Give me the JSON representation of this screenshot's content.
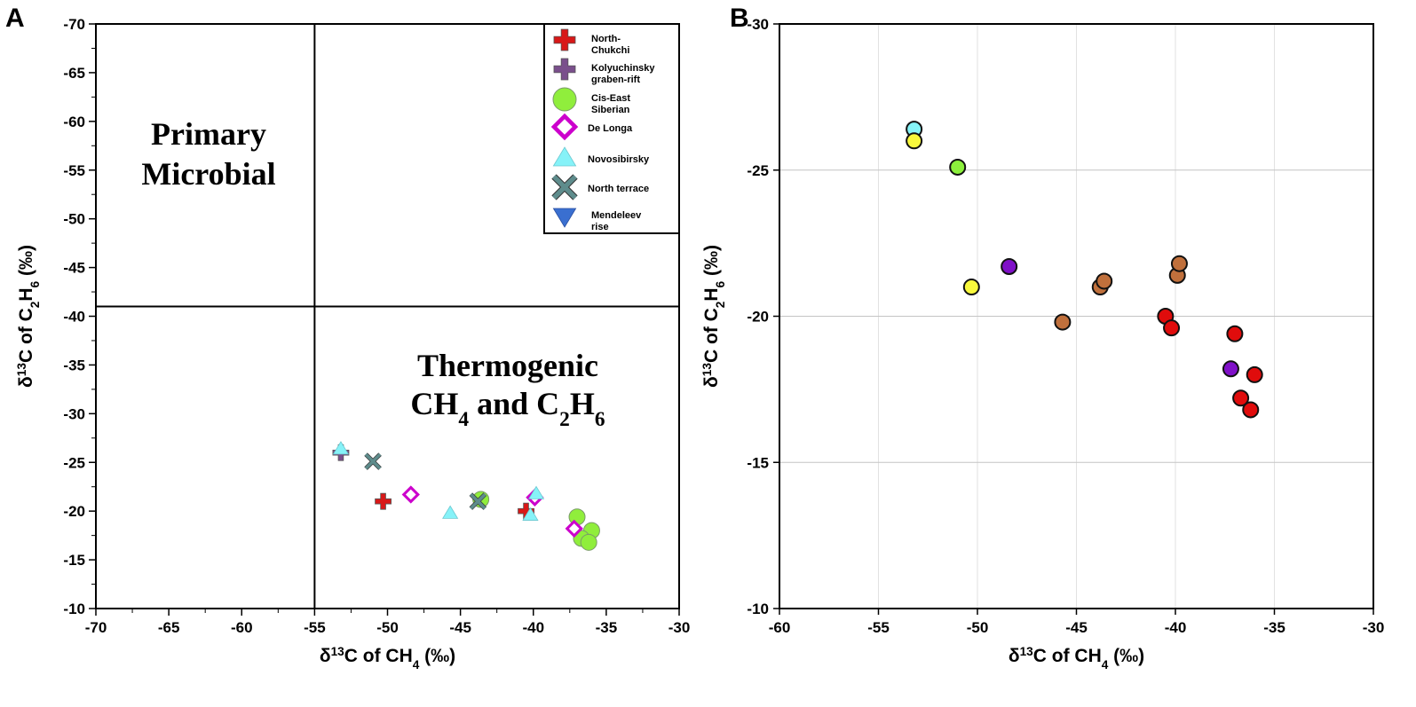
{
  "chart_data": [
    {
      "panel": "A",
      "type": "scatter",
      "xlabel": "δ13C of CH4 (‰)",
      "ylabel": "δ13C of C2H6 (‰)",
      "xlim": [
        -70,
        -30
      ],
      "ylim": [
        -70,
        -10
      ],
      "y_inverted_top": -70,
      "xticks": [
        -70,
        -65,
        -60,
        -55,
        -50,
        -45,
        -40,
        -35,
        -30
      ],
      "yticks": [
        -70,
        -65,
        -60,
        -55,
        -50,
        -45,
        -40,
        -35,
        -30,
        -25,
        -20,
        -15,
        -10
      ],
      "grid": false,
      "legend_placement": "top-right",
      "boundaries": {
        "x": -55,
        "y": -41
      },
      "regions": [
        {
          "lines": [
            "Primary",
            "Microbial"
          ]
        },
        {
          "lines": [
            "Thermogenic",
            "CH4 and C2H6"
          ]
        }
      ],
      "series": [
        {
          "name": "North-Chukchi",
          "legend_lines": [
            "North-",
            "Chukchi"
          ],
          "marker": "plus",
          "color": "#d81818",
          "points": [
            [
              -50.3,
              -21.0
            ],
            [
              -40.5,
              -20.0
            ]
          ]
        },
        {
          "name": "Kolyuchinsky graben-rift",
          "legend_lines": [
            "Kolyuchinsky",
            "graben-rift"
          ],
          "marker": "plus",
          "color": "#7a4f8c",
          "points": [
            [
              -53.2,
              -26.0
            ]
          ]
        },
        {
          "name": "Cis-East Siberian",
          "legend_lines": [
            "Cis-East",
            "Siberian"
          ],
          "marker": "circle",
          "color": "#90ee3c",
          "points": [
            [
              -43.6,
              -21.2
            ],
            [
              -37.0,
              -19.4
            ],
            [
              -36.0,
              -18.0
            ],
            [
              -36.7,
              -17.2
            ],
            [
              -36.2,
              -16.8
            ]
          ]
        },
        {
          "name": "De Longa",
          "legend_lines": [
            "De Longa"
          ],
          "marker": "diamond",
          "color": "#cc00cc",
          "points": [
            [
              -48.4,
              -21.7
            ],
            [
              -39.9,
              -21.4
            ],
            [
              -37.2,
              -18.2
            ]
          ]
        },
        {
          "name": "Novosibirsky",
          "legend_lines": [
            "Novosibirsky"
          ],
          "marker": "triangle",
          "color": "#86f2f8",
          "points": [
            [
              -53.2,
              -26.4
            ],
            [
              -45.7,
              -19.8
            ],
            [
              -39.8,
              -21.8
            ],
            [
              -40.2,
              -19.6
            ]
          ]
        },
        {
          "name": "North terrace",
          "legend_lines": [
            "North terrace"
          ],
          "marker": "x",
          "color": "#5e8c8c",
          "points": [
            [
              -51.0,
              -25.1
            ],
            [
              -43.8,
              -21.0
            ]
          ]
        },
        {
          "name": "Mendeleev rise",
          "legend_lines": [
            "Mendeleev",
            "rise"
          ],
          "marker": "triangle-down",
          "color": "#3a6fd0",
          "points": []
        }
      ]
    },
    {
      "panel": "B",
      "type": "scatter",
      "xlabel": "δ13C of CH4 (‰)",
      "ylabel": "δ13C of C2H6 (‰)",
      "xlim": [
        -60,
        -30
      ],
      "ylim": [
        -30,
        -10
      ],
      "xticks": [
        -60,
        -55,
        -50,
        -45,
        -40,
        -35,
        -30
      ],
      "yticks": [
        -30,
        -25,
        -20,
        -15,
        -10
      ],
      "grid": true,
      "points": [
        {
          "x": -53.2,
          "y": -26.4,
          "color": "#86f4f8"
        },
        {
          "x": -53.2,
          "y": -26.0,
          "color": "#f8f83c"
        },
        {
          "x": -51.0,
          "y": -25.1,
          "color": "#8cf03c"
        },
        {
          "x": -48.4,
          "y": -21.7,
          "color": "#8010c8"
        },
        {
          "x": -50.3,
          "y": -21.0,
          "color": "#f8f83c"
        },
        {
          "x": -45.7,
          "y": -19.8,
          "color": "#c0703c"
        },
        {
          "x": -43.8,
          "y": -21.0,
          "color": "#c0703c"
        },
        {
          "x": -43.6,
          "y": -21.2,
          "color": "#c0703c"
        },
        {
          "x": -39.9,
          "y": -21.4,
          "color": "#c0703c"
        },
        {
          "x": -39.8,
          "y": -21.8,
          "color": "#c0703c"
        },
        {
          "x": -40.5,
          "y": -20.0,
          "color": "#e00c0c"
        },
        {
          "x": -40.2,
          "y": -19.6,
          "color": "#e00c0c"
        },
        {
          "x": -37.0,
          "y": -19.4,
          "color": "#e00c0c"
        },
        {
          "x": -37.2,
          "y": -18.2,
          "color": "#8010c8"
        },
        {
          "x": -36.0,
          "y": -18.0,
          "color": "#e00c0c"
        },
        {
          "x": -36.7,
          "y": -17.2,
          "color": "#e00c0c"
        },
        {
          "x": -36.2,
          "y": -16.8,
          "color": "#e00c0c"
        }
      ]
    }
  ]
}
